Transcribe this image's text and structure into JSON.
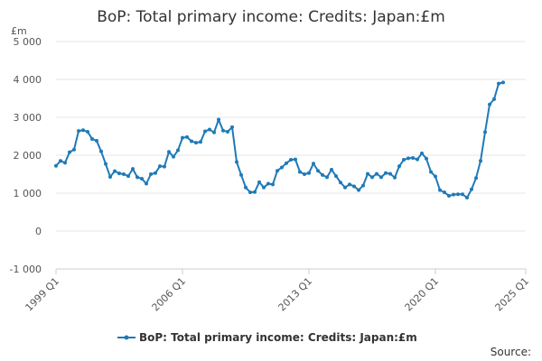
{
  "chart_data": {
    "type": "line",
    "title": "BoP: Total primary income: Credits: Japan:£m",
    "ylabel": "£m",
    "ylim": [
      -1000,
      5000
    ],
    "yticks": [
      -1000,
      0,
      1000,
      2000,
      3000,
      4000,
      5000
    ],
    "ytick_labels": [
      "-1 000",
      "0",
      "1 000",
      "2 000",
      "3 000",
      "4 000",
      "5 000"
    ],
    "xtick_labels": [
      "1999 Q1",
      "2006 Q1",
      "2013 Q1",
      "2020 Q1",
      "2025 Q1"
    ],
    "xtick_index": [
      0,
      28,
      56,
      84,
      104
    ],
    "x_start": "1999 Q1",
    "grid": true,
    "legend_position": "bottom",
    "source_label": "Source:",
    "series": [
      {
        "name": "BoP: Total primary income: Credits: Japan:£m",
        "color": "#1f7ab8",
        "values": [
          1720,
          1850,
          1800,
          2080,
          2150,
          2640,
          2660,
          2620,
          2430,
          2380,
          2100,
          1770,
          1430,
          1580,
          1520,
          1500,
          1450,
          1640,
          1420,
          1380,
          1250,
          1500,
          1530,
          1710,
          1700,
          2090,
          1960,
          2130,
          2460,
          2480,
          2370,
          2330,
          2350,
          2630,
          2680,
          2600,
          2940,
          2650,
          2620,
          2740,
          1820,
          1480,
          1150,
          1020,
          1030,
          1290,
          1150,
          1250,
          1230,
          1590,
          1680,
          1790,
          1880,
          1890,
          1560,
          1500,
          1530,
          1780,
          1590,
          1480,
          1420,
          1620,
          1450,
          1280,
          1150,
          1230,
          1180,
          1080,
          1200,
          1510,
          1420,
          1510,
          1420,
          1530,
          1510,
          1410,
          1710,
          1880,
          1920,
          1930,
          1890,
          2050,
          1910,
          1560,
          1440,
          1080,
          1020,
          930,
          960,
          970,
          970,
          880,
          1100,
          1400,
          1850,
          2610,
          3340,
          3480,
          3890,
          3920
        ]
      }
    ]
  }
}
